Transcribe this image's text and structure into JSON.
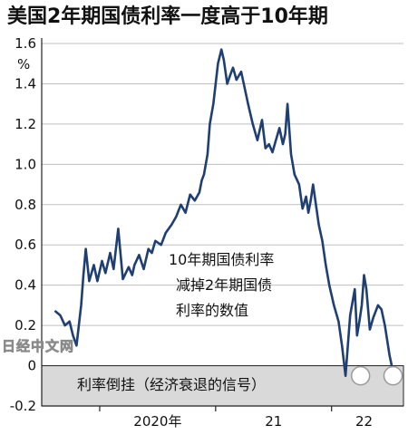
{
  "chart_data": {
    "type": "line",
    "title": "美国2年期国债利率一度高于10年期",
    "y_unit": "%",
    "ylim": [
      -0.2,
      1.6
    ],
    "y_ticks": [
      "1.6",
      "1.4",
      "1.2",
      "1.0",
      "0.8",
      "0.6",
      "0.4",
      "0.2",
      "0",
      "-0.2"
    ],
    "x_labels": [
      "2020年",
      "21",
      "22"
    ],
    "grid": true,
    "line_color": "#1f3f73",
    "inversion_band": {
      "ymin": -0.2,
      "ymax": 0,
      "label": "利率倒挂（经济衰退的信号）",
      "color": "#d9d9d9"
    },
    "annotation": [
      "10年期国债利率",
      "减掉2年期国债",
      "利率的数值"
    ],
    "x": [
      2019.62,
      2019.66,
      2019.7,
      2019.74,
      2019.77,
      2019.8,
      2019.84,
      2019.86,
      2019.88,
      2019.91,
      2019.95,
      2019.98,
      2020.02,
      2020.05,
      2020.09,
      2020.12,
      2020.16,
      2020.2,
      2020.25,
      2020.28,
      2020.3,
      2020.34,
      2020.38,
      2020.42,
      2020.45,
      2020.48,
      2020.53,
      2020.57,
      2020.62,
      2020.66,
      2020.7,
      2020.74,
      2020.78,
      2020.82,
      2020.86,
      2020.88,
      2020.9,
      2020.93,
      2020.95,
      2020.98,
      2021.02,
      2021.05,
      2021.07,
      2021.1,
      2021.13,
      2021.15,
      2021.18,
      2021.22,
      2021.25,
      2021.28,
      2021.32,
      2021.36,
      2021.4,
      2021.43,
      2021.46,
      2021.49,
      2021.52,
      2021.55,
      2021.58,
      2021.6,
      2021.62,
      2021.65,
      2021.68,
      2021.72,
      2021.75,
      2021.78,
      2021.8,
      2021.82,
      2021.84,
      2021.86,
      2021.89,
      2021.92,
      2021.95,
      2021.98,
      2022.02,
      2022.06,
      2022.09,
      2022.12,
      2022.16,
      2022.2,
      2022.22,
      2022.24,
      2022.26,
      2022.28,
      2022.3,
      2022.33,
      2022.36,
      2022.4,
      2022.43,
      2022.46,
      2022.5,
      2022.53
    ],
    "y": [
      0.27,
      0.25,
      0.2,
      0.22,
      0.15,
      0.1,
      0.3,
      0.45,
      0.58,
      0.42,
      0.5,
      0.42,
      0.52,
      0.46,
      0.56,
      0.48,
      0.68,
      0.43,
      0.49,
      0.45,
      0.5,
      0.55,
      0.48,
      0.58,
      0.56,
      0.62,
      0.6,
      0.66,
      0.7,
      0.74,
      0.8,
      0.76,
      0.85,
      0.82,
      0.86,
      0.92,
      0.95,
      1.05,
      1.2,
      1.3,
      1.5,
      1.57,
      1.52,
      1.4,
      1.45,
      1.48,
      1.42,
      1.46,
      1.38,
      1.3,
      1.2,
      1.12,
      1.22,
      1.08,
      1.1,
      1.06,
      1.12,
      1.18,
      1.1,
      1.15,
      1.3,
      1.05,
      0.95,
      0.9,
      0.78,
      0.84,
      0.76,
      0.82,
      0.9,
      0.82,
      0.7,
      0.62,
      0.5,
      0.4,
      0.3,
      0.22,
      0.1,
      -0.05,
      0.25,
      0.38,
      0.15,
      0.22,
      0.3,
      0.45,
      0.38,
      0.18,
      0.24,
      0.3,
      0.28,
      0.2,
      0.05,
      -0.03
    ],
    "end_markers": [
      {
        "x": 2022.25,
        "y": -0.05
      },
      {
        "x": 2022.53,
        "y": -0.05
      }
    ]
  },
  "watermark": "日经中文网"
}
